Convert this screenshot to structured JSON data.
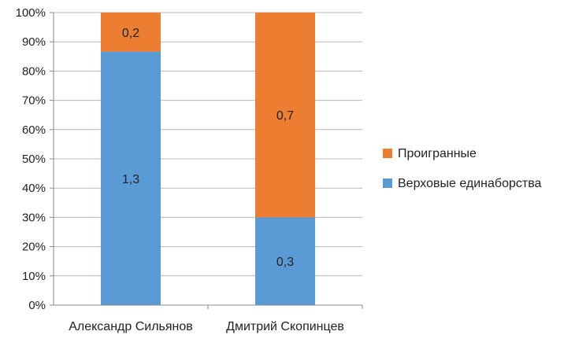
{
  "chart_data": {
    "type": "bar",
    "stacked": true,
    "percent_stacked": true,
    "categories": [
      "Александр Сильянов",
      "Дмитрий Скопинцев"
    ],
    "series": [
      {
        "name": "Верховые единаборства",
        "values": [
          1.3,
          0.3
        ],
        "labels": [
          "1,3",
          "0,3"
        ],
        "color": "#5B9BD5"
      },
      {
        "name": "Проигранные",
        "values": [
          0.2,
          0.7
        ],
        "labels": [
          "0,2",
          "0,7"
        ],
        "color": "#ED7D31"
      }
    ],
    "y_ticks": [
      "0%",
      "10%",
      "20%",
      "30%",
      "40%",
      "50%",
      "60%",
      "70%",
      "80%",
      "90%",
      "100%"
    ],
    "ylim": [
      0,
      100
    ],
    "grid": true,
    "legend": "right"
  }
}
